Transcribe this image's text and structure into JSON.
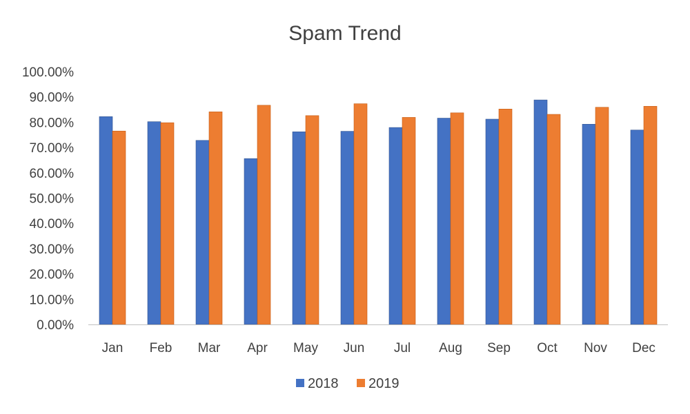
{
  "chart_data": {
    "type": "bar",
    "title": "Spam Trend",
    "xlabel": "",
    "ylabel": "",
    "categories": [
      "Jan",
      "Feb",
      "Mar",
      "Apr",
      "May",
      "Jun",
      "Jul",
      "Aug",
      "Sep",
      "Oct",
      "Nov",
      "Dec"
    ],
    "series": [
      {
        "name": "2018",
        "color": "#4472C4",
        "values": [
          82.2,
          80.2,
          72.8,
          65.6,
          76.2,
          76.4,
          77.9,
          81.6,
          81.2,
          88.8,
          79.2,
          76.9
        ]
      },
      {
        "name": "2019",
        "color": "#ED7D31",
        "values": [
          76.5,
          79.8,
          84.1,
          86.7,
          82.6,
          87.3,
          81.9,
          83.7,
          85.2,
          83.1,
          85.9,
          86.3
        ]
      }
    ],
    "ylim": [
      0,
      100
    ],
    "yticks": [
      "0.00%",
      "10.00%",
      "20.00%",
      "30.00%",
      "40.00%",
      "50.00%",
      "60.00%",
      "70.00%",
      "80.00%",
      "90.00%",
      "100.00%"
    ],
    "grid": false,
    "legend_position": "bottom"
  }
}
